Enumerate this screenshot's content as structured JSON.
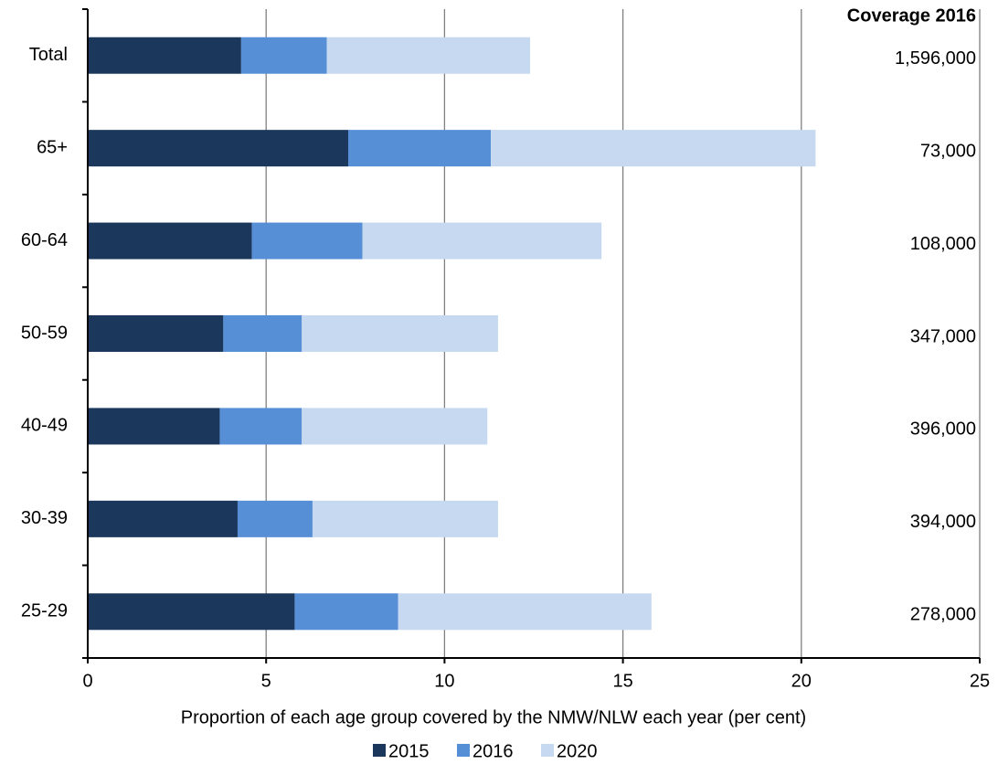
{
  "chart_data": {
    "type": "stacked-barh",
    "xlabel": "Proportion of each age group covered by the NMW/NLW each year (per cent)",
    "categories": [
      "Total",
      "65+",
      "60-64",
      "50-59",
      "40-49",
      "30-39",
      "25-29"
    ],
    "series": [
      {
        "name": "2015",
        "color": "#1b375c",
        "values": [
          4.3,
          7.3,
          4.6,
          3.8,
          3.7,
          4.2,
          5.8
        ]
      },
      {
        "name": "2016",
        "color": "#568fd6",
        "values": [
          2.4,
          4.0,
          3.1,
          2.2,
          2.3,
          2.1,
          2.9
        ]
      },
      {
        "name": "2020",
        "color": "#c6d9f0",
        "values": [
          5.7,
          9.1,
          6.7,
          5.5,
          5.2,
          5.2,
          7.1
        ]
      }
    ],
    "xlim": [
      0,
      25
    ],
    "xticks": [
      0,
      5,
      10,
      15,
      20,
      25
    ],
    "grid": true,
    "legend": "bottom",
    "coverage_title": "Coverage 2016",
    "coverage": [
      "1,596,000",
      "73,000",
      "108,000",
      "347,000",
      "396,000",
      "394,000",
      "278,000"
    ]
  }
}
